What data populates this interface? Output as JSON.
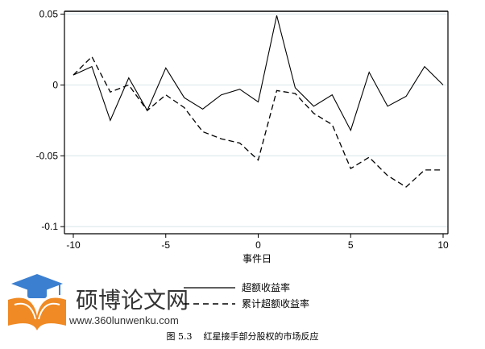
{
  "chart_data": {
    "type": "line",
    "title": "",
    "xlabel": "事件日",
    "ylabel": "",
    "xlim": [
      -10,
      10
    ],
    "ylim": [
      -0.105,
      0.052
    ],
    "x_ticks": [
      -10,
      -5,
      0,
      5,
      10
    ],
    "x_tick_labels": [
      "-10",
      "-5",
      "0",
      "5",
      "10"
    ],
    "y_ticks": [
      0.05,
      0,
      -0.05,
      -0.1
    ],
    "y_tick_labels": [
      "0.05",
      "0",
      "-0.05",
      "-0.1"
    ],
    "grid": "horizontal",
    "legend_position": "bottom",
    "x": [
      -10,
      -9,
      -8,
      -7,
      -6,
      -5,
      -4,
      -3,
      -2,
      -1,
      0,
      1,
      2,
      3,
      4,
      5,
      6,
      7,
      8,
      9,
      10
    ],
    "series": [
      {
        "name": "超额收益率",
        "style": "solid",
        "values": [
          0.007,
          0.013,
          -0.025,
          0.005,
          -0.018,
          0.012,
          -0.009,
          -0.017,
          -0.007,
          -0.003,
          -0.012,
          0.049,
          -0.002,
          -0.015,
          -0.007,
          -0.032,
          0.009,
          -0.015,
          -0.008,
          0.013,
          0.0
        ]
      },
      {
        "name": "累计超额收益率",
        "style": "dashed",
        "values": [
          0.007,
          0.02,
          -0.005,
          0.0,
          -0.018,
          -0.007,
          -0.016,
          -0.033,
          -0.038,
          -0.041,
          -0.053,
          -0.004,
          -0.006,
          -0.02,
          -0.028,
          -0.059,
          -0.051,
          -0.064,
          -0.072,
          -0.06,
          -0.06
        ]
      }
    ]
  },
  "colors": {
    "line": "#000000",
    "grid": "#dde8ec",
    "watermark_blue": "#3b7fd0",
    "watermark_orange": "#f08a24"
  },
  "caption": "图 5.3    红星接手部分股权的市场反应",
  "watermark": {
    "title": "硕博论文网",
    "url": "www.360lunwenku.com",
    "icon": "graduation-cap-book-icon"
  }
}
